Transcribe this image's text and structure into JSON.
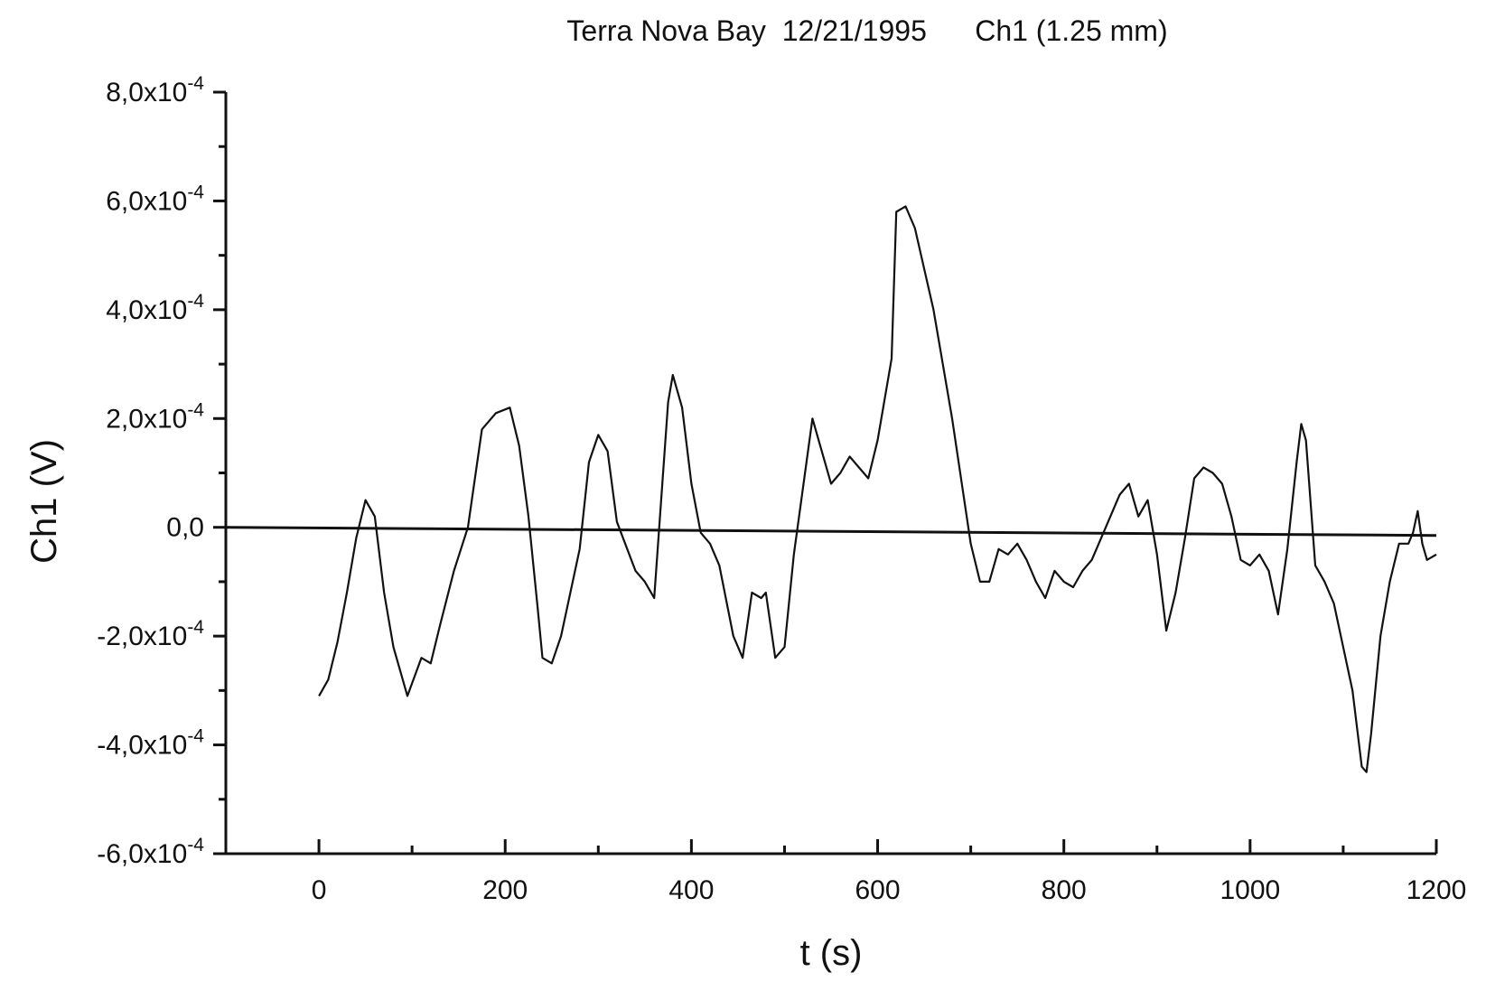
{
  "chart_data": {
    "type": "line",
    "title": "Terra Nova Bay  12/21/1995      Ch1 (1.25 mm)",
    "xlabel": "t (s)",
    "ylabel": "Ch1 (V)",
    "xlim": [
      -100,
      1200
    ],
    "ylim": [
      -0.0006,
      0.0008
    ],
    "x_ticks": [
      {
        "value": 0,
        "label": "0"
      },
      {
        "value": 200,
        "label": "200"
      },
      {
        "value": 400,
        "label": "400"
      },
      {
        "value": 600,
        "label": "600"
      },
      {
        "value": 800,
        "label": "800"
      },
      {
        "value": 1000,
        "label": "1000"
      },
      {
        "value": 1200,
        "label": "1200"
      }
    ],
    "y_ticks": [
      {
        "value": 0.0008,
        "mantissa": "8,0x10",
        "exponent": "-4"
      },
      {
        "value": 0.0006,
        "mantissa": "6,0x10",
        "exponent": "-4"
      },
      {
        "value": 0.0004,
        "mantissa": "4,0x10",
        "exponent": "-4"
      },
      {
        "value": 0.0002,
        "mantissa": "2,0x10",
        "exponent": "-4"
      },
      {
        "value": 0.0,
        "mantissa": "0,0",
        "exponent": ""
      },
      {
        "value": -0.0002,
        "mantissa": "-2,0x10",
        "exponent": "-4"
      },
      {
        "value": -0.0004,
        "mantissa": "-4,0x10",
        "exponent": "-4"
      },
      {
        "value": -0.0006,
        "mantissa": "-6,0x10",
        "exponent": "-4"
      }
    ],
    "grid": false,
    "baseline": {
      "x": [
        -100,
        1200
      ],
      "y": [
        0.0,
        -1.5e-05
      ]
    },
    "series": [
      {
        "x": [
          0,
          10,
          20,
          30,
          40,
          50,
          60,
          70,
          80,
          95,
          110,
          120,
          130,
          145,
          160,
          175,
          190,
          205,
          215,
          225,
          235,
          240,
          250,
          260,
          270,
          280,
          290,
          300,
          310,
          320,
          340,
          350,
          360,
          375,
          380,
          390,
          400,
          410,
          420,
          430,
          445,
          455,
          465,
          475,
          480,
          490,
          500,
          510,
          530,
          540,
          550,
          560,
          570,
          580,
          590,
          600,
          615,
          620,
          630,
          640,
          660,
          680,
          700,
          710,
          720,
          730,
          740,
          750,
          760,
          770,
          780,
          790,
          800,
          810,
          820,
          830,
          840,
          860,
          870,
          880,
          890,
          900,
          910,
          920,
          930,
          940,
          950,
          960,
          970,
          980,
          990,
          1000,
          1010,
          1020,
          1030,
          1040,
          1050,
          1055,
          1060,
          1070,
          1080,
          1090,
          1100,
          1110,
          1120,
          1125,
          1130,
          1140,
          1150,
          1160,
          1170,
          1175,
          1180,
          1185,
          1190,
          1200
        ],
        "y": [
          -0.00031,
          -0.00028,
          -0.00021,
          -0.00012,
          -2e-05,
          5e-05,
          2e-05,
          -0.00012,
          -0.00022,
          -0.00031,
          -0.00024,
          -0.00025,
          -0.00018,
          -8e-05,
          0.0,
          0.00018,
          0.00021,
          0.00022,
          0.00015,
          2e-05,
          -0.00015,
          -0.00024,
          -0.00025,
          -0.0002,
          -0.00012,
          -4e-05,
          0.00012,
          0.00017,
          0.00014,
          1e-05,
          -8e-05,
          -0.0001,
          -0.00013,
          0.00023,
          0.00028,
          0.00022,
          8e-05,
          -1e-05,
          -3e-05,
          -7e-05,
          -0.0002,
          -0.00024,
          -0.00012,
          -0.00013,
          -0.00012,
          -0.00024,
          -0.00022,
          -5e-05,
          0.0002,
          0.00014,
          8e-05,
          0.0001,
          0.00013,
          0.00011,
          9e-05,
          0.00016,
          0.00031,
          0.00058,
          0.00059,
          0.00055,
          0.0004,
          0.0002,
          -3e-05,
          -0.0001,
          -0.0001,
          -4e-05,
          -5e-05,
          -3e-05,
          -6e-05,
          -0.0001,
          -0.00013,
          -8e-05,
          -0.0001,
          -0.00011,
          -8e-05,
          -6e-05,
          -2e-05,
          6e-05,
          8e-05,
          2e-05,
          5e-05,
          -5e-05,
          -0.00019,
          -0.00012,
          -2e-05,
          9e-05,
          0.00011,
          0.0001,
          8e-05,
          2e-05,
          -6e-05,
          -7e-05,
          -5e-05,
          -8e-05,
          -0.00016,
          -4e-05,
          0.00012,
          0.00019,
          0.00016,
          -7e-05,
          -0.0001,
          -0.00014,
          -0.00022,
          -0.0003,
          -0.00044,
          -0.00045,
          -0.00038,
          -0.0002,
          -0.0001,
          -3e-05,
          -3e-05,
          -1e-05,
          3e-05,
          -3e-05,
          -6e-05,
          -5e-05
        ]
      }
    ]
  }
}
